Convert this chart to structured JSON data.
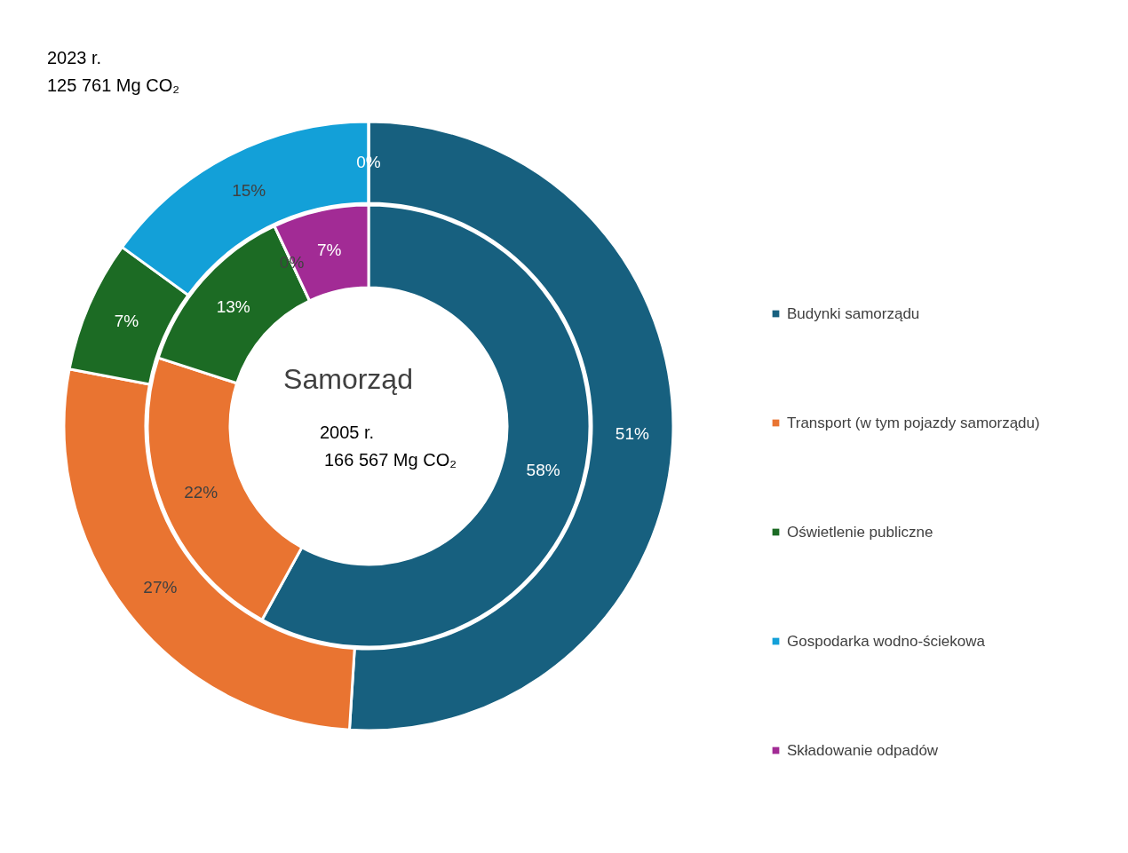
{
  "chart_data": {
    "type": "donut",
    "title": "Samorząd",
    "categories": [
      "Budynki samorządu",
      "Transport (w tym pojazdy samorządu)",
      "Oświetlenie publiczne",
      "Gospodarka wodno-ściekowa",
      "Składowanie odpadów"
    ],
    "colors": [
      "#17607f",
      "#e97431",
      "#1c6b24",
      "#13a0d8",
      "#a22b95"
    ],
    "series": [
      {
        "values": [
          51,
          27,
          7,
          15,
          0
        ],
        "value_labels": [
          "51%",
          "27%",
          "7%",
          "15%",
          "0%"
        ]
      },
      {
        "values": [
          58,
          22,
          13,
          0,
          7
        ],
        "value_labels": [
          "58%",
          "22%",
          "13%",
          "0%",
          "7%"
        ]
      }
    ],
    "annotations": [
      "2023 r.",
      "125 761 Mg CO₂",
      "2005 r.",
      "166 567 Mg CO₂"
    ],
    "legend": "right"
  }
}
